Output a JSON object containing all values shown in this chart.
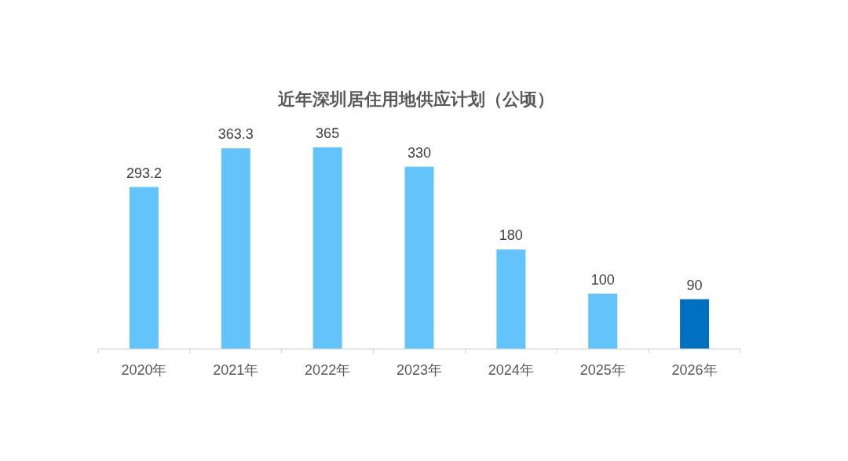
{
  "chart_data": {
    "type": "bar",
    "title": "近年深圳居住用地供应计划（公顷）",
    "categories": [
      "2020年",
      "2021年",
      "2022年",
      "2023年",
      "2024年",
      "2025年",
      "2026年"
    ],
    "values": [
      293.2,
      363.3,
      365,
      330,
      180,
      100,
      90
    ],
    "colors": [
      "#63c3fb",
      "#63c3fb",
      "#63c3fb",
      "#63c3fb",
      "#63c3fb",
      "#63c3fb",
      "#0070c0"
    ],
    "data_labels": true
  }
}
